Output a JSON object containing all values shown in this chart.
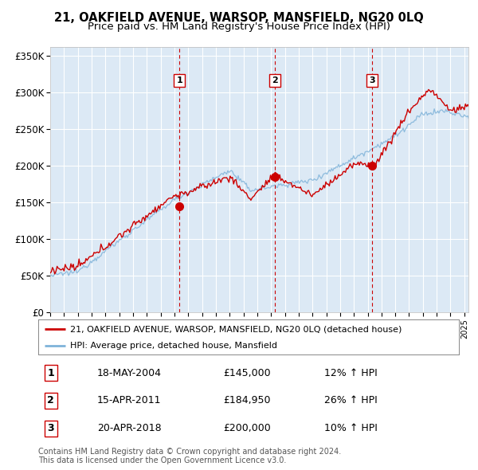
{
  "title": "21, OAKFIELD AVENUE, WARSOP, MANSFIELD, NG20 0LQ",
  "subtitle": "Price paid vs. HM Land Registry's House Price Index (HPI)",
  "ylabel_ticks": [
    "£0",
    "£50K",
    "£100K",
    "£150K",
    "£200K",
    "£250K",
    "£300K",
    "£350K"
  ],
  "ytick_values": [
    0,
    50000,
    100000,
    150000,
    200000,
    250000,
    300000,
    350000
  ],
  "ylim": [
    0,
    362000
  ],
  "xlim_start": 1995.0,
  "xlim_end": 2025.3,
  "plot_bg_color": "#dce9f5",
  "grid_color": "#ffffff",
  "red_line_color": "#cc0000",
  "blue_line_color": "#7fb3d9",
  "sale_dates": [
    2004.37,
    2011.29,
    2018.3
  ],
  "sale_prices": [
    145000,
    184950,
    200000
  ],
  "sale_labels": [
    "1",
    "2",
    "3"
  ],
  "legend_label_red": "21, OAKFIELD AVENUE, WARSOP, MANSFIELD, NG20 0LQ (detached house)",
  "legend_label_blue": "HPI: Average price, detached house, Mansfield",
  "table_data": [
    [
      "1",
      "18-MAY-2004",
      "£145,000",
      "12% ↑ HPI"
    ],
    [
      "2",
      "15-APR-2011",
      "£184,950",
      "26% ↑ HPI"
    ],
    [
      "3",
      "20-APR-2018",
      "£200,000",
      "10% ↑ HPI"
    ]
  ],
  "footer_text": "Contains HM Land Registry data © Crown copyright and database right 2024.\nThis data is licensed under the Open Government Licence v3.0.",
  "title_fontsize": 10.5,
  "subtitle_fontsize": 9.5,
  "tick_fontsize": 8.5,
  "legend_fontsize": 8,
  "table_fontsize": 9,
  "footer_fontsize": 7
}
